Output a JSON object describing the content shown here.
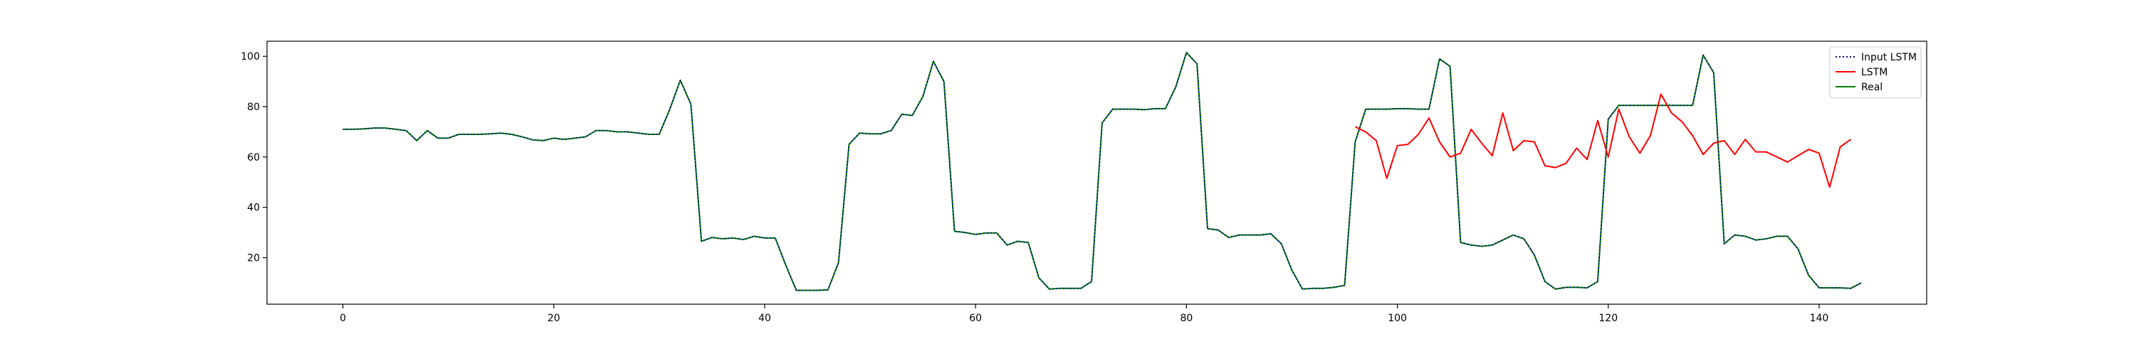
{
  "chart_data": {
    "type": "line",
    "title": "",
    "xlabel": "",
    "ylabel": "",
    "xlim": [
      -7.2,
      150.2
    ],
    "ylim": [
      1.5,
      106
    ],
    "xticks": [
      0,
      20,
      40,
      60,
      80,
      100,
      120,
      140
    ],
    "yticks": [
      20,
      40,
      60,
      80,
      100
    ],
    "grid": false,
    "legend_position": "top-right",
    "series": [
      {
        "name": "Input LSTM",
        "color": "#00008b",
        "style": "dotted",
        "x_start": 0,
        "values": [
          71,
          71,
          71.2,
          71.5,
          71.5,
          71,
          70.5,
          66.5,
          70.5,
          67.5,
          67.5,
          69,
          69,
          69,
          69.2,
          69.5,
          69,
          68,
          66.8,
          66.5,
          67.5,
          67,
          67.5,
          68,
          70.5,
          70.5,
          70,
          70,
          69.5,
          69,
          69,
          79,
          90.5,
          81,
          26.5,
          28,
          27.5,
          27.8,
          27.2,
          28.5,
          27.8,
          27.8,
          17,
          7,
          7,
          7,
          7.2,
          18,
          65,
          69.5,
          69.2,
          69.2,
          70.5,
          77,
          76.5,
          84,
          98,
          90,
          30.5,
          30,
          29.2,
          29.8,
          29.8,
          25,
          26.5,
          26,
          12,
          7.5,
          7.8,
          7.8,
          7.8,
          10.5,
          73.5,
          79,
          79,
          79,
          78.8,
          79.2,
          79.2,
          88,
          101.5,
          97,
          31.5,
          31,
          28,
          29,
          29,
          29,
          29.5,
          25.5,
          15,
          7.5,
          7.8,
          7.8,
          8.2,
          9,
          66,
          79,
          79,
          79,
          79.2,
          79.2,
          79,
          79,
          99,
          96,
          26,
          25,
          24.5,
          25,
          27,
          29,
          27.5,
          21,
          10.5,
          7.5,
          8.2,
          8.2,
          8,
          10.5,
          75,
          80.5,
          80.5,
          80.5,
          80.5,
          80.5,
          80.5,
          80.5,
          80.5,
          100.5,
          93.5,
          25.5,
          29,
          28.5,
          27,
          27.5,
          28.5,
          28.5,
          23.5,
          13,
          8,
          8,
          8,
          7.8,
          10
        ]
      },
      {
        "name": "LSTM",
        "color": "#ff0000",
        "style": "solid",
        "x_start": 96,
        "values": [
          72,
          70,
          66.5,
          51.5,
          64.5,
          65,
          69,
          75.5,
          66,
          60,
          61.5,
          71,
          65.5,
          60.5,
          77.5,
          62.5,
          66.5,
          66,
          56.5,
          55.8,
          57.5,
          63.5,
          59,
          74.5,
          60,
          79,
          68,
          61.5,
          68.5,
          85,
          77.5,
          74,
          68.5,
          61,
          65.5,
          66.5,
          61,
          67,
          62,
          62,
          60,
          58,
          60.5,
          63,
          61.5,
          48,
          64,
          67
        ]
      },
      {
        "name": "Real",
        "color": "#008000",
        "style": "solid",
        "x_start": 0,
        "values": [
          71,
          71,
          71.2,
          71.5,
          71.5,
          71,
          70.5,
          66.5,
          70.5,
          67.5,
          67.5,
          69,
          69,
          69,
          69.2,
          69.5,
          69,
          68,
          66.8,
          66.5,
          67.5,
          67,
          67.5,
          68,
          70.5,
          70.5,
          70,
          70,
          69.5,
          69,
          69,
          79,
          90.5,
          81,
          26.5,
          28,
          27.5,
          27.8,
          27.2,
          28.5,
          27.8,
          27.8,
          17,
          7,
          7,
          7,
          7.2,
          18,
          65,
          69.5,
          69.2,
          69.2,
          70.5,
          77,
          76.5,
          84,
          98,
          90,
          30.5,
          30,
          29.2,
          29.8,
          29.8,
          25,
          26.5,
          26,
          12,
          7.5,
          7.8,
          7.8,
          7.8,
          10.5,
          73.5,
          79,
          79,
          79,
          78.8,
          79.2,
          79.2,
          88,
          101.5,
          97,
          31.5,
          31,
          28,
          29,
          29,
          29,
          29.5,
          25.5,
          15,
          7.5,
          7.8,
          7.8,
          8.2,
          9,
          66,
          79,
          79,
          79,
          79.2,
          79.2,
          79,
          79,
          99,
          96,
          26,
          25,
          24.5,
          25,
          27,
          29,
          27.5,
          21,
          10.5,
          7.5,
          8.2,
          8.2,
          8,
          10.5,
          75,
          80.5,
          80.5,
          80.5,
          80.5,
          80.5,
          80.5,
          80.5,
          80.5,
          100.5,
          93.5,
          25.5,
          29,
          28.5,
          27,
          27.5,
          28.5,
          28.5,
          23.5,
          13,
          8,
          8,
          8,
          7.8,
          10
        ]
      }
    ]
  }
}
